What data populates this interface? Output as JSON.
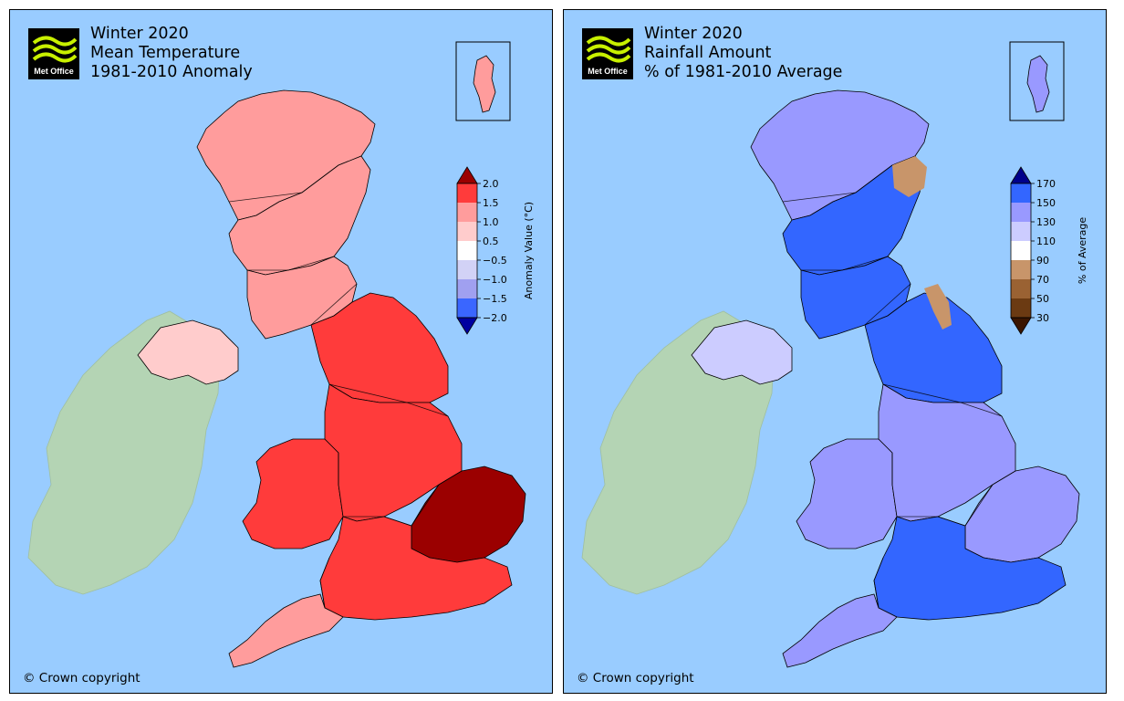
{
  "panels": [
    {
      "id": "temperature",
      "logo_text": "Met Office",
      "title_lines": [
        "Winter 2020",
        "Mean Temperature",
        "1981-2010 Anomaly"
      ],
      "copyright": "© Crown copyright",
      "legend": {
        "label": "Anomaly Value (°C)",
        "ticks": [
          "2.0",
          "1.5",
          "1.0",
          "0.5",
          "−0.5",
          "−1.0",
          "−1.5",
          "−2.0"
        ],
        "colors_top_to_bottom": [
          "#9b0000",
          "#ff3b3b",
          "#ff9c9c",
          "#ffcccc",
          "#ffffff",
          "#d2d2f6",
          "#a0a0f0",
          "#3a66ff",
          "#0000a0"
        ]
      },
      "region_colors": {
        "scotland_north": "#ff9c9c",
        "scotland_central": "#ff9c9c",
        "scotland_south": "#ff9c9c",
        "northern_ireland": "#ffcccc",
        "england_north": "#ff3b3b",
        "wales": "#ff3b3b",
        "england_midlands": "#ff3b3b",
        "east_anglia": "#9b0000",
        "england_south": "#ff3b3b",
        "southwest": "#ff9c9c",
        "shetland": "#ff9c9c"
      }
    },
    {
      "id": "rainfall",
      "logo_text": "Met Office",
      "title_lines": [
        "Winter 2020",
        "Rainfall Amount",
        "% of 1981-2010 Average"
      ],
      "copyright": "© Crown copyright",
      "legend": {
        "label": "% of Average",
        "ticks": [
          "170",
          "150",
          "130",
          "110",
          "90",
          "70",
          "50",
          "30"
        ],
        "colors_top_to_bottom": [
          "#00008b",
          "#3366ff",
          "#9999ff",
          "#ccccff",
          "#ffffff",
          "#c8956a",
          "#9a6233",
          "#6b3a12",
          "#3a1500"
        ]
      },
      "region_colors": {
        "scotland_north": "#9999ff",
        "scotland_central": "#3366ff",
        "scotland_south": "#3366ff",
        "northern_ireland": "#ccccff",
        "england_north": "#3366ff",
        "wales": "#9999ff",
        "england_midlands": "#9999ff",
        "east_anglia": "#9999ff",
        "england_south": "#3366ff",
        "southwest": "#9999ff",
        "shetland": "#9999ff"
      }
    }
  ],
  "colors": {
    "sea": "#99ccff",
    "ireland": "#b4d4b4",
    "outline": "#000000"
  }
}
